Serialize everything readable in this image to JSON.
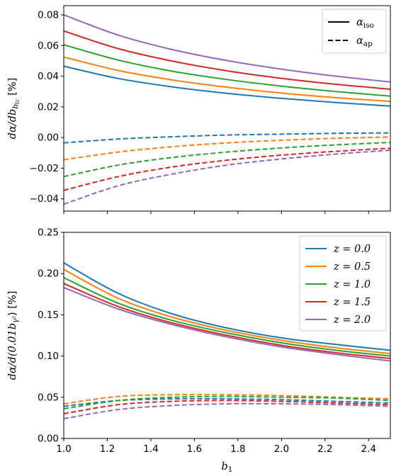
{
  "chart_data": [
    {
      "type": "line",
      "title": "",
      "xlabel": "",
      "ylabel": "dα/db_{b_{tc}} [%]",
      "ylabel_main": "dα/db",
      "ylabel_sub": "b",
      "ylabel_subsub": "tc",
      "ylabel_unit": " [%]",
      "xlim": [
        1.0,
        2.5
      ],
      "ylim": [
        -0.048,
        0.086
      ],
      "yticks": [
        -0.04,
        -0.02,
        0.0,
        0.02,
        0.04,
        0.06,
        0.08
      ],
      "ytick_labels": [
        "−0.04",
        "−0.02",
        "0.00",
        "0.02",
        "0.04",
        "0.06",
        "0.08"
      ],
      "show_xtick_labels": false,
      "legend": {
        "placement": "top-right",
        "entries": [
          {
            "style": "solid",
            "label": "α",
            "sub": "iso"
          },
          {
            "style": "dashed",
            "label": "α",
            "sub": "ap"
          }
        ]
      },
      "x": [
        1.0,
        1.25,
        1.5,
        1.75,
        2.0,
        2.25,
        2.5
      ],
      "series": [
        {
          "color": "#1f77b4",
          "style": "solid",
          "values": [
            0.0465,
            0.0385,
            0.033,
            0.0288,
            0.0255,
            0.0228,
            0.0205
          ]
        },
        {
          "color": "#ff7f0e",
          "style": "solid",
          "values": [
            0.0525,
            0.0437,
            0.0375,
            0.0328,
            0.029,
            0.026,
            0.0235
          ]
        },
        {
          "color": "#2ca02c",
          "style": "solid",
          "values": [
            0.0605,
            0.0505,
            0.0432,
            0.0378,
            0.0335,
            0.03,
            0.027
          ]
        },
        {
          "color": "#d62728",
          "style": "solid",
          "values": [
            0.0695,
            0.058,
            0.0498,
            0.0435,
            0.0386,
            0.0347,
            0.0315
          ]
        },
        {
          "color": "#9467bd",
          "style": "solid",
          "values": [
            0.08,
            0.0668,
            0.0573,
            0.0502,
            0.0446,
            0.04,
            0.0362
          ]
        },
        {
          "color": "#1f77b4",
          "style": "dashed",
          "values": [
            -0.0035,
            -0.001,
            0.0005,
            0.0016,
            0.0022,
            0.0027,
            0.003
          ]
        },
        {
          "color": "#ff7f0e",
          "style": "dashed",
          "values": [
            -0.0145,
            -0.0095,
            -0.006,
            -0.0035,
            -0.0018,
            -0.0005,
            0.0003
          ]
        },
        {
          "color": "#2ca02c",
          "style": "dashed",
          "values": [
            -0.0255,
            -0.018,
            -0.013,
            -0.0095,
            -0.0068,
            -0.0048,
            -0.0032
          ]
        },
        {
          "color": "#d62728",
          "style": "dashed",
          "values": [
            -0.0345,
            -0.0255,
            -0.0192,
            -0.0148,
            -0.0115,
            -0.009,
            -0.007
          ]
        },
        {
          "color": "#9467bd",
          "style": "dashed",
          "values": [
            -0.0435,
            -0.0315,
            -0.0238,
            -0.018,
            -0.014,
            -0.0108,
            -0.0083
          ]
        }
      ]
    },
    {
      "type": "line",
      "title": "",
      "xlabel": "b_1",
      "xlabel_main": "b",
      "xlabel_sub": "1",
      "ylabel": "dα/d(0.01b_{γ²}) [%]",
      "ylabel_main": "dα/d(0.01",
      "ylabel_var": "b",
      "ylabel_sub": "γ²",
      "ylabel_unit": ") [%]",
      "xlim": [
        1.0,
        2.5
      ],
      "ylim": [
        0.0,
        0.25
      ],
      "xticks": [
        1.0,
        1.2,
        1.4,
        1.6,
        1.8,
        2.0,
        2.2,
        2.4
      ],
      "xtick_labels": [
        "1.0",
        "1.2",
        "1.4",
        "1.6",
        "1.8",
        "2.0",
        "2.2",
        "2.4"
      ],
      "yticks": [
        0.0,
        0.05,
        0.1,
        0.15,
        0.2,
        0.25
      ],
      "ytick_labels": [
        "0.00",
        "0.05",
        "0.10",
        "0.15",
        "0.20",
        "0.25"
      ],
      "legend": {
        "placement": "top-right",
        "entries": [
          {
            "color": "#1f77b4",
            "label": "z = 0.0"
          },
          {
            "color": "#ff7f0e",
            "label": "z = 0.5"
          },
          {
            "color": "#2ca02c",
            "label": "z = 1.0"
          },
          {
            "color": "#d62728",
            "label": "z = 1.5"
          },
          {
            "color": "#9467bd",
            "label": "z = 2.0"
          }
        ]
      },
      "x": [
        1.0,
        1.25,
        1.5,
        1.75,
        2.0,
        2.25,
        2.5
      ],
      "series": [
        {
          "color": "#1f77b4",
          "style": "solid",
          "values": [
            0.213,
            0.176,
            0.151,
            0.134,
            0.122,
            0.114,
            0.107
          ]
        },
        {
          "color": "#ff7f0e",
          "style": "solid",
          "values": [
            0.205,
            0.17,
            0.147,
            0.131,
            0.119,
            0.11,
            0.103
          ]
        },
        {
          "color": "#2ca02c",
          "style": "solid",
          "values": [
            0.195,
            0.164,
            0.143,
            0.128,
            0.116,
            0.107,
            0.1
          ]
        },
        {
          "color": "#d62728",
          "style": "solid",
          "values": [
            0.188,
            0.16,
            0.14,
            0.125,
            0.113,
            0.104,
            0.097
          ]
        },
        {
          "color": "#9467bd",
          "style": "solid",
          "values": [
            0.183,
            0.157,
            0.138,
            0.123,
            0.111,
            0.102,
            0.094
          ]
        },
        {
          "color": "#1f77b4",
          "style": "dashed",
          "values": [
            0.039,
            0.046,
            0.048,
            0.048,
            0.047,
            0.045,
            0.043
          ]
        },
        {
          "color": "#ff7f0e",
          "style": "dashed",
          "values": [
            0.042,
            0.051,
            0.053,
            0.053,
            0.052,
            0.05,
            0.048
          ]
        },
        {
          "color": "#2ca02c",
          "style": "dashed",
          "values": [
            0.036,
            0.046,
            0.05,
            0.051,
            0.05,
            0.049,
            0.046
          ]
        },
        {
          "color": "#d62728",
          "style": "dashed",
          "values": [
            0.03,
            0.041,
            0.045,
            0.046,
            0.045,
            0.043,
            0.041
          ]
        },
        {
          "color": "#9467bd",
          "style": "dashed",
          "values": [
            0.024,
            0.035,
            0.04,
            0.042,
            0.042,
            0.041,
            0.039
          ]
        }
      ]
    }
  ]
}
